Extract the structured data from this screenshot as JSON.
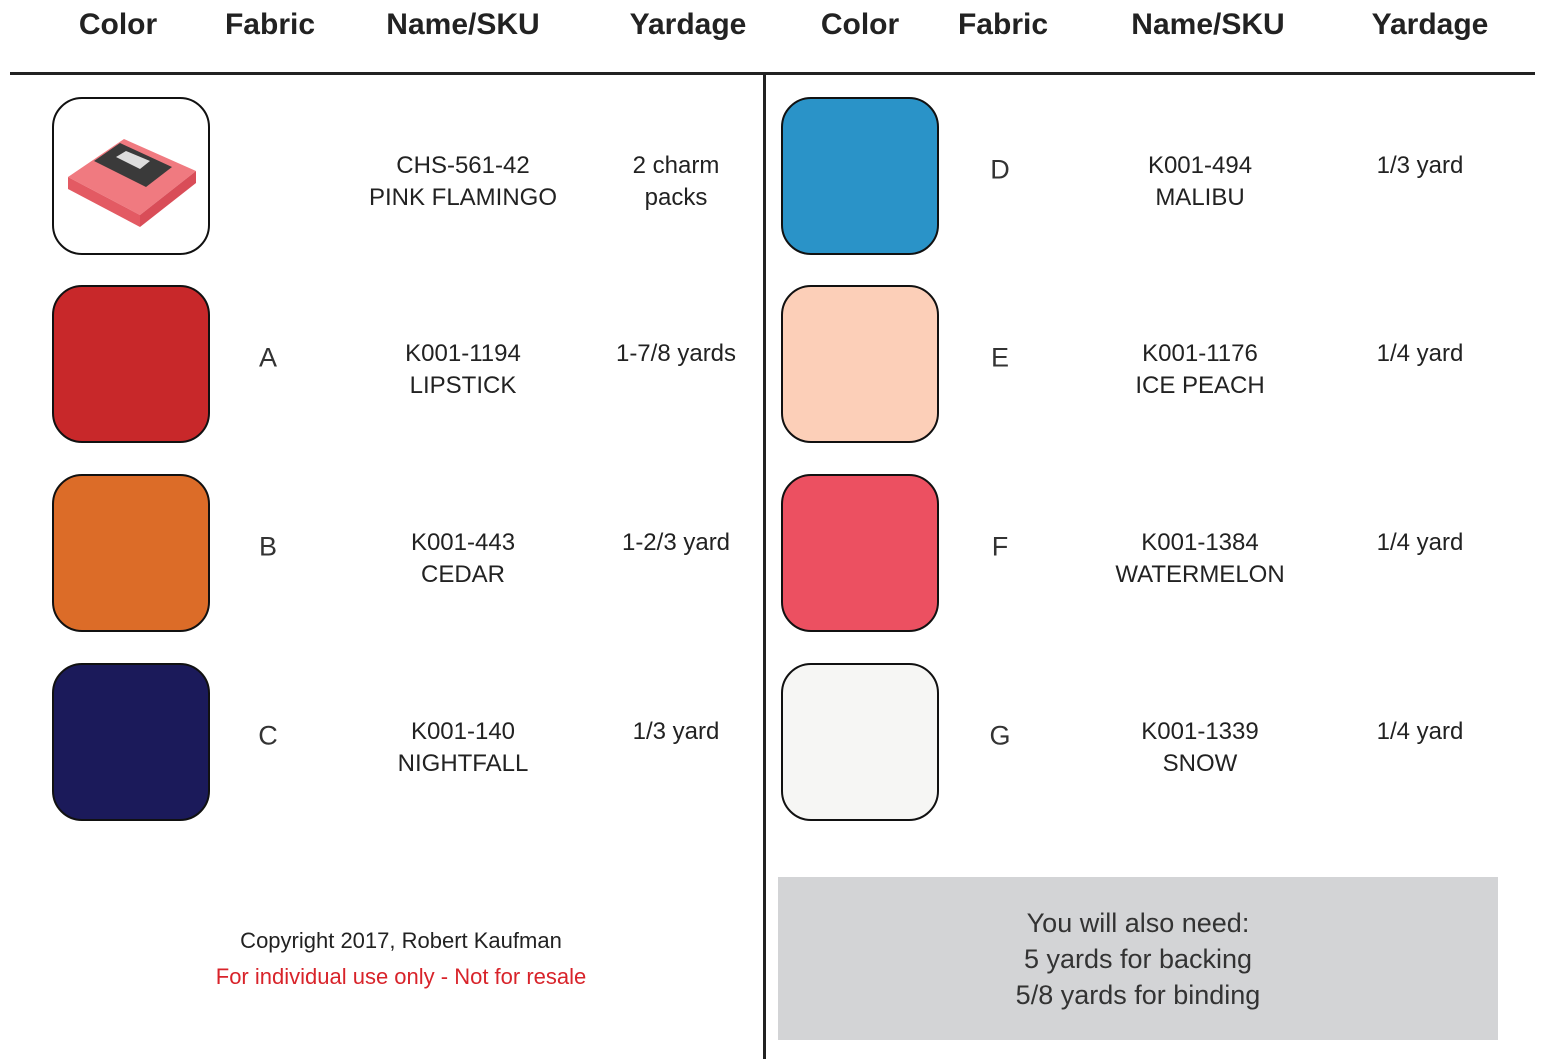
{
  "header": {
    "columns": [
      "Color",
      "Fabric",
      "Name/SKU",
      "Yardage",
      "Color",
      "Fabric",
      "Name/SKU",
      "Yardage"
    ]
  },
  "left_rows": [
    {
      "color": "#ffffff",
      "sku": "CHS-561-42",
      "name": "PINK FLAMINGO",
      "yardage": "2 charm packs"
    },
    {
      "fabric": "A",
      "color": "#c8282a",
      "sku": "K001-1194",
      "name": "LIPSTICK",
      "yardage": "1-7/8 yards"
    },
    {
      "fabric": "B",
      "color": "#dc6c28",
      "sku": "K001-443",
      "name": "CEDAR",
      "yardage": "1-2/3 yard"
    },
    {
      "fabric": "C",
      "color": "#1b1a5a",
      "sku": "K001-140",
      "name": "NIGHTFALL",
      "yardage": "1/3 yard"
    }
  ],
  "right_rows": [
    {
      "fabric": "D",
      "color": "#2a93c8",
      "sku": "K001-494",
      "name": "MALIBU",
      "yardage": "1/3 yard"
    },
    {
      "fabric": "E",
      "color": "#fccfb8",
      "sku": "K001-1176",
      "name": "ICE PEACH",
      "yardage": "1/4 yard"
    },
    {
      "fabric": "F",
      "color": "#ec5061",
      "sku": "K001-1384",
      "name": "WATERMELON",
      "yardage": "1/4 yard"
    },
    {
      "fabric": "G",
      "color": "#f6f6f4",
      "sku": "K001-1339",
      "name": "SNOW",
      "yardage": "1/4 yard"
    }
  ],
  "footer": {
    "copyright": "Copyright 2017, Robert Kaufman",
    "notice": "For individual use only - Not for resale"
  },
  "notes": {
    "lines": [
      "You will also need:",
      "5 yards for backing",
      "5/8 yards for binding"
    ]
  }
}
